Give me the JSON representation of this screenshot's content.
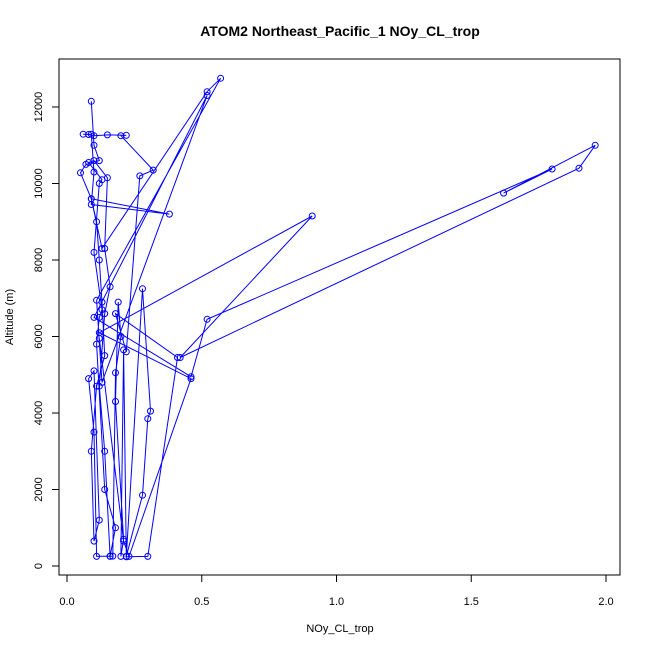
{
  "chart_data": {
    "type": "line",
    "title": "ATOM2 Northeast_Pacific_1 NOy_CL_trop",
    "xlabel": "NOy_CL_trop",
    "ylabel": "Altitude (m)",
    "xlim": [
      0,
      2.0
    ],
    "ylim": [
      0,
      12500
    ],
    "x_ticks": [
      0.0,
      0.5,
      1.0,
      1.5,
      2.0
    ],
    "x_tick_labels": [
      "0.0",
      "0.5",
      "1.0",
      "1.5",
      "2.0"
    ],
    "y_ticks": [
      0,
      2000,
      4000,
      6000,
      8000,
      10000,
      12000
    ],
    "y_tick_labels": [
      "0",
      "2000",
      "4000",
      "6000",
      "8000",
      "10000",
      "12000"
    ],
    "grid": false,
    "color": "#0000ff",
    "marker": "open-circle",
    "series": [
      {
        "points": [
          [
            0.09,
            12150
          ],
          [
            0.1,
            11000
          ],
          [
            0.12,
            10600
          ],
          [
            0.07,
            10500
          ],
          [
            0.05,
            10280
          ],
          [
            0.09,
            9600
          ],
          [
            0.11,
            9000
          ],
          [
            0.12,
            8000
          ],
          [
            0.13,
            6900
          ],
          [
            0.14,
            5500
          ],
          [
            0.11,
            4700
          ],
          [
            0.09,
            3000
          ],
          [
            0.1,
            650
          ],
          [
            0.12,
            1200
          ],
          [
            0.1,
            5100
          ],
          [
            0.08,
            4900
          ],
          [
            0.1,
            3500
          ],
          [
            0.11,
            250
          ],
          [
            0.16,
            260
          ],
          [
            0.18,
            1000
          ],
          [
            0.14,
            2000
          ],
          [
            0.11,
            5800
          ],
          [
            0.12,
            6500
          ],
          [
            0.13,
            6700
          ],
          [
            0.1,
            8200
          ],
          [
            0.12,
            10000
          ],
          [
            0.13,
            10100
          ],
          [
            0.08,
            10550
          ],
          [
            0.1,
            10600
          ],
          [
            0.15,
            10150
          ],
          [
            0.14,
            8300
          ],
          [
            0.16,
            7300
          ],
          [
            0.14,
            6600
          ],
          [
            0.12,
            4700
          ],
          [
            0.14,
            3000
          ],
          [
            0.16,
            250
          ],
          [
            0.17,
            260
          ],
          [
            0.18,
            5050
          ],
          [
            0.2,
            6000
          ],
          [
            0.19,
            6900
          ],
          [
            0.18,
            4300
          ],
          [
            0.21,
            700
          ],
          [
            0.2,
            250
          ],
          [
            0.21,
            5650
          ],
          [
            0.22,
            250
          ],
          [
            0.28,
            1850
          ],
          [
            0.3,
            3850
          ],
          [
            0.31,
            4050
          ],
          [
            0.28,
            7250
          ],
          [
            0.22,
            240
          ],
          [
            0.3,
            250
          ],
          [
            0.41,
            5450
          ],
          [
            0.18,
            6600
          ],
          [
            0.22,
            5600
          ],
          [
            0.27,
            10200
          ],
          [
            0.32,
            10350
          ],
          [
            0.2,
            11250
          ],
          [
            0.22,
            11260
          ],
          [
            0.15,
            11270
          ],
          [
            0.1,
            11250
          ],
          [
            0.08,
            11280
          ],
          [
            0.06,
            11290
          ],
          [
            0.09,
            11290
          ],
          [
            0.1,
            10300
          ],
          [
            0.09,
            9450
          ],
          [
            0.38,
            9200
          ],
          [
            0.09,
            9600
          ],
          [
            0.13,
            8300
          ],
          [
            0.52,
            12400
          ],
          [
            0.57,
            12750
          ],
          [
            0.11,
            6950
          ],
          [
            0.13,
            4800
          ],
          [
            0.52,
            12300
          ],
          [
            0.1,
            6500
          ],
          [
            0.46,
            4950
          ],
          [
            0.52,
            6450
          ],
          [
            1.8,
            10380
          ],
          [
            1.62,
            9750
          ],
          [
            1.96,
            11000
          ],
          [
            1.9,
            10400
          ],
          [
            0.42,
            5450
          ],
          [
            0.91,
            9150
          ],
          [
            0.12,
            6100
          ],
          [
            0.46,
            4900
          ],
          [
            0.23,
            250
          ],
          [
            0.21,
            650
          ],
          [
            0.12,
            5950
          ]
        ]
      }
    ]
  }
}
